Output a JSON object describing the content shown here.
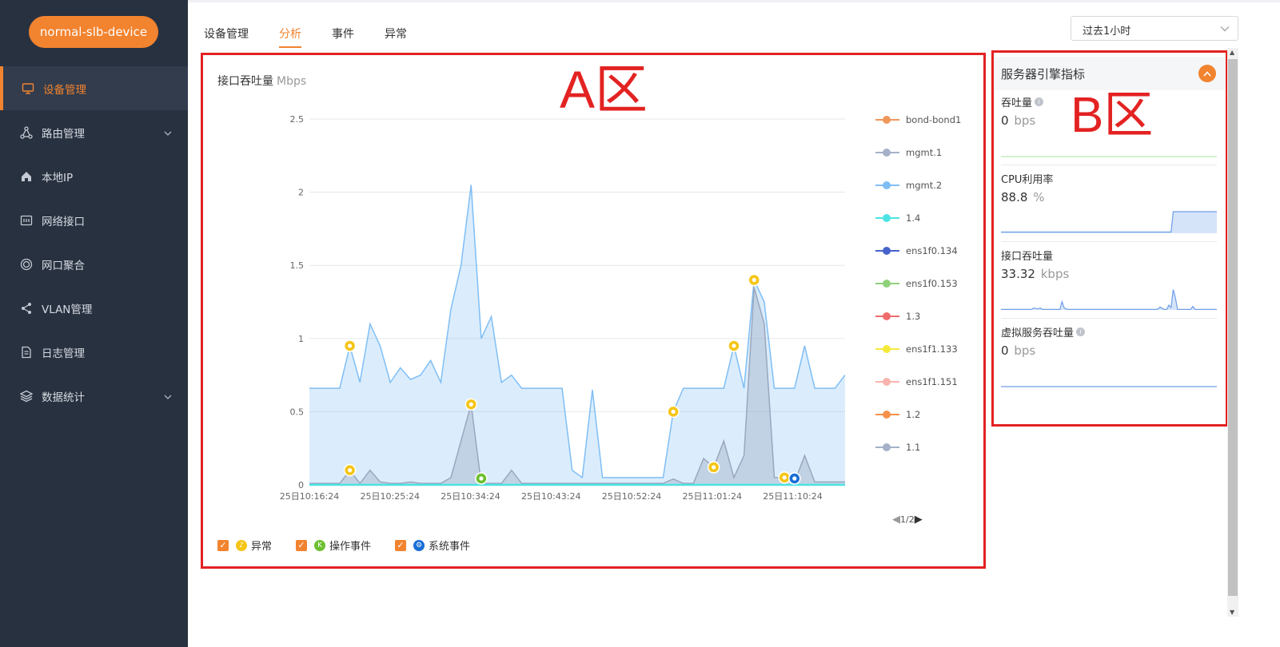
{
  "sidebar": {
    "device_name": "normal-slb-device",
    "items": [
      {
        "label": "设备管理",
        "icon": "monitor-icon",
        "active": true
      },
      {
        "label": "路由管理",
        "icon": "route-icon",
        "expandable": true
      },
      {
        "label": "本地IP",
        "icon": "home-icon"
      },
      {
        "label": "网络接口",
        "icon": "interface-icon"
      },
      {
        "label": "网口聚合",
        "icon": "aggregate-icon"
      },
      {
        "label": "VLAN管理",
        "icon": "share-icon"
      },
      {
        "label": "日志管理",
        "icon": "file-icon"
      },
      {
        "label": "数据统计",
        "icon": "layers-icon",
        "expandable": true
      }
    ]
  },
  "tabs": [
    {
      "label": "设备管理"
    },
    {
      "label": "分析",
      "active": true
    },
    {
      "label": "事件"
    },
    {
      "label": "异常"
    }
  ],
  "time_range": {
    "selected": "过去1小时"
  },
  "zone_a": {
    "label": "A区",
    "title": "接口吞吐量",
    "unit": "Mbps",
    "legend": [
      {
        "name": "bond-bond1",
        "color": "#f0975a"
      },
      {
        "name": "mgmt.1",
        "color": "#a4b1c9"
      },
      {
        "name": "mgmt.2",
        "color": "#7fbef5"
      },
      {
        "name": "1.4",
        "color": "#4de3e3"
      },
      {
        "name": "ens1f0.134",
        "color": "#4563c9"
      },
      {
        "name": "ens1f0.153",
        "color": "#8fd17a"
      },
      {
        "name": "1.3",
        "color": "#f06b6b"
      },
      {
        "name": "ens1f1.133",
        "color": "#f5ea3b"
      },
      {
        "name": "ens1f1.151",
        "color": "#f8b4ad"
      },
      {
        "name": "1.2",
        "color": "#f5914a"
      },
      {
        "name": "1.1",
        "color": "#a4b1c9"
      }
    ],
    "pager": "1/2",
    "event_legend": [
      {
        "label": "异常",
        "icon": "bell-icon",
        "color": "#f5c518"
      },
      {
        "label": "操作事件",
        "icon": "operation-icon",
        "color": "#6cbf2f"
      },
      {
        "label": "系统事件",
        "icon": "gear-icon",
        "color": "#1a6fd6"
      }
    ]
  },
  "chart_data": {
    "type": "area",
    "title": "接口吞吐量",
    "ylabel": "Mbps",
    "ylim": [
      0,
      2.5
    ],
    "yticks": [
      "0",
      "0.5",
      "1",
      "1.5",
      "2",
      "2.5"
    ],
    "xticks": [
      "25日10:16:24",
      "25日10:25:24",
      "25日10:34:24",
      "25日10:43:24",
      "25日10:52:24",
      "25日11:01:24",
      "25日11:10:24"
    ],
    "x": [
      "10:16:24",
      "10:19",
      "10:22",
      "10:24",
      "10:25",
      "10:25:30",
      "10:26",
      "10:26:30",
      "10:27",
      "10:28",
      "10:29",
      "10:30",
      "10:31",
      "10:32",
      "10:33",
      "10:33:30",
      "10:34",
      "10:34:30",
      "10:35",
      "10:36",
      "10:37",
      "10:38",
      "10:39",
      "10:40",
      "10:41",
      "10:41:30",
      "10:42",
      "10:42:30",
      "10:43",
      "10:44",
      "10:45",
      "10:47",
      "10:50",
      "10:53",
      "10:56",
      "10:58",
      "10:59",
      "11:00",
      "11:02",
      "11:03",
      "11:04",
      "11:05",
      "11:05:30",
      "11:06",
      "11:06:30",
      "11:07",
      "11:08",
      "11:09",
      "11:10",
      "11:10:30",
      "11:11",
      "11:12",
      "11:14",
      "11:16"
    ],
    "series": [
      {
        "name": "mgmt.2",
        "values": [
          0.66,
          0.66,
          0.66,
          0.66,
          0.95,
          0.7,
          1.1,
          0.95,
          0.7,
          0.8,
          0.72,
          0.75,
          0.85,
          0.7,
          1.2,
          1.5,
          2.05,
          1.0,
          1.15,
          0.7,
          0.75,
          0.66,
          0.66,
          0.66,
          0.66,
          0.66,
          0.1,
          0.05,
          0.65,
          0.05,
          0.05,
          0.05,
          0.05,
          0.05,
          0.05,
          0.05,
          0.5,
          0.66,
          0.66,
          0.66,
          0.66,
          0.66,
          0.95,
          0.66,
          1.4,
          1.25,
          0.66,
          0.66,
          0.66,
          0.95,
          0.66,
          0.66,
          0.66,
          0.75
        ]
      },
      {
        "name": "1.1",
        "values": [
          0.01,
          0.01,
          0.01,
          0.01,
          0.1,
          0.01,
          0.1,
          0.02,
          0.01,
          0.01,
          0.02,
          0.01,
          0.01,
          0.01,
          0.05,
          0.3,
          0.55,
          0.01,
          0.01,
          0.01,
          0.1,
          0.01,
          0.01,
          0.01,
          0.01,
          0.01,
          0.01,
          0.01,
          0.01,
          0.01,
          0.01,
          0.01,
          0.01,
          0.01,
          0.01,
          0.01,
          0.04,
          0.01,
          0.01,
          0.18,
          0.12,
          0.3,
          0.05,
          0.2,
          1.35,
          1.1,
          0.05,
          0.05,
          0.02,
          0.2,
          0.02,
          0.02,
          0.02,
          0.02
        ]
      }
    ],
    "events": [
      {
        "type": "异常",
        "x": "10:25",
        "series": "mgmt.2"
      },
      {
        "type": "异常",
        "x": "10:25",
        "series": "1.1"
      },
      {
        "type": "异常",
        "x": "10:34",
        "series": "1.1"
      },
      {
        "type": "操作事件",
        "x": "10:34:30",
        "series": "1.1"
      },
      {
        "type": "异常",
        "x": "10:59",
        "series": "mgmt.2"
      },
      {
        "type": "异常",
        "x": "11:04",
        "series": "1.1"
      },
      {
        "type": "异常",
        "x": "11:05:30",
        "series": "mgmt.2"
      },
      {
        "type": "异常",
        "x": "11:06:30",
        "series": "mgmt.2"
      },
      {
        "type": "异常",
        "x": "11:09",
        "series": "1.1"
      },
      {
        "type": "系统事件",
        "x": "11:10",
        "series": "1.1"
      }
    ]
  },
  "zone_b": {
    "label": "B区",
    "title": "服务器引擎指标",
    "metrics": [
      {
        "label": "吞吐量",
        "value": "0",
        "unit": "bps",
        "info": true,
        "color": "#b9e6b0",
        "spark": [
          0,
          0,
          0,
          0,
          0,
          0,
          0,
          0,
          0,
          0
        ]
      },
      {
        "label": "CPU利用率",
        "value": "88.8",
        "unit": "%",
        "info": false,
        "color": "#6d9ee8",
        "spark": [
          0.05,
          0.05,
          0.05,
          0.05,
          0.05,
          0.05,
          0.05,
          0.05,
          0.05,
          0.05,
          0.05,
          0.05,
          0.05,
          0.05,
          0.05,
          0.05,
          0.05,
          0.05,
          0.05,
          0.05,
          0.05,
          0.05,
          0.05,
          0.05,
          0.05,
          0.05,
          0.05,
          0.05,
          0.05,
          0.05,
          0.05,
          0.05,
          0.05,
          0.05,
          0.05,
          0.05,
          0.05,
          0.05,
          0.05,
          0.05,
          0.05,
          0.05,
          0.05,
          0.05,
          0.05,
          0.05,
          0.05,
          0.05,
          0.05,
          0.05,
          0.05,
          0.05,
          0.05,
          0.05,
          0.05,
          0.05,
          0.05,
          0.05,
          0.05,
          0.05,
          0.05,
          0.05,
          0.05,
          0.05,
          0.05,
          0.05,
          0.05,
          0.05,
          0.05,
          0.05,
          0.05,
          0.05,
          0.05,
          0.05,
          0.05,
          0.05,
          0.05,
          0.05,
          0.05,
          0.9,
          0.9,
          0.9,
          0.9,
          0.9,
          0.9,
          0.9,
          0.9,
          0.9,
          0.9,
          0.9,
          0.9,
          0.9,
          0.9,
          0.9,
          0.9,
          0.9,
          0.9,
          0.9,
          0.9,
          0.9
        ]
      },
      {
        "label": "接口吞吐量",
        "value": "33.32",
        "unit": "kbps",
        "info": false,
        "color": "#6d9ee8",
        "spark": [
          0.02,
          0.02,
          0.02,
          0.02,
          0.02,
          0.02,
          0.02,
          0.02,
          0.02,
          0.02,
          0.02,
          0.02,
          0.02,
          0.02,
          0.02,
          0.08,
          0.06,
          0.04,
          0.08,
          0.02,
          0.02,
          0.02,
          0.02,
          0.02,
          0.02,
          0.02,
          0.02,
          0.02,
          0.35,
          0.08,
          0.04,
          0.02,
          0.02,
          0.02,
          0.02,
          0.02,
          0.02,
          0.02,
          0.02,
          0.02,
          0.02,
          0.02,
          0.02,
          0.02,
          0.02,
          0.02,
          0.02,
          0.02,
          0.02,
          0.02,
          0.02,
          0.02,
          0.02,
          0.02,
          0.02,
          0.02,
          0.02,
          0.02,
          0.02,
          0.02,
          0.02,
          0.02,
          0.02,
          0.02,
          0.02,
          0.02,
          0.02,
          0.02,
          0.02,
          0.02,
          0.02,
          0.02,
          0.04,
          0.12,
          0.06,
          0.02,
          0.02,
          0.2,
          0.1,
          0.85,
          0.5,
          0.02,
          0.02,
          0.02,
          0.02,
          0.02,
          0.02,
          0.02,
          0.15,
          0.02,
          0.02,
          0.02,
          0.02,
          0.02,
          0.02,
          0.02,
          0.02,
          0.02,
          0.02,
          0.02
        ]
      },
      {
        "label": "虚拟服务吞吐量",
        "value": "0",
        "unit": "bps",
        "info": true,
        "color": "#6d9ee8",
        "spark": [
          0,
          0,
          0,
          0,
          0,
          0,
          0,
          0,
          0,
          0
        ]
      }
    ]
  }
}
